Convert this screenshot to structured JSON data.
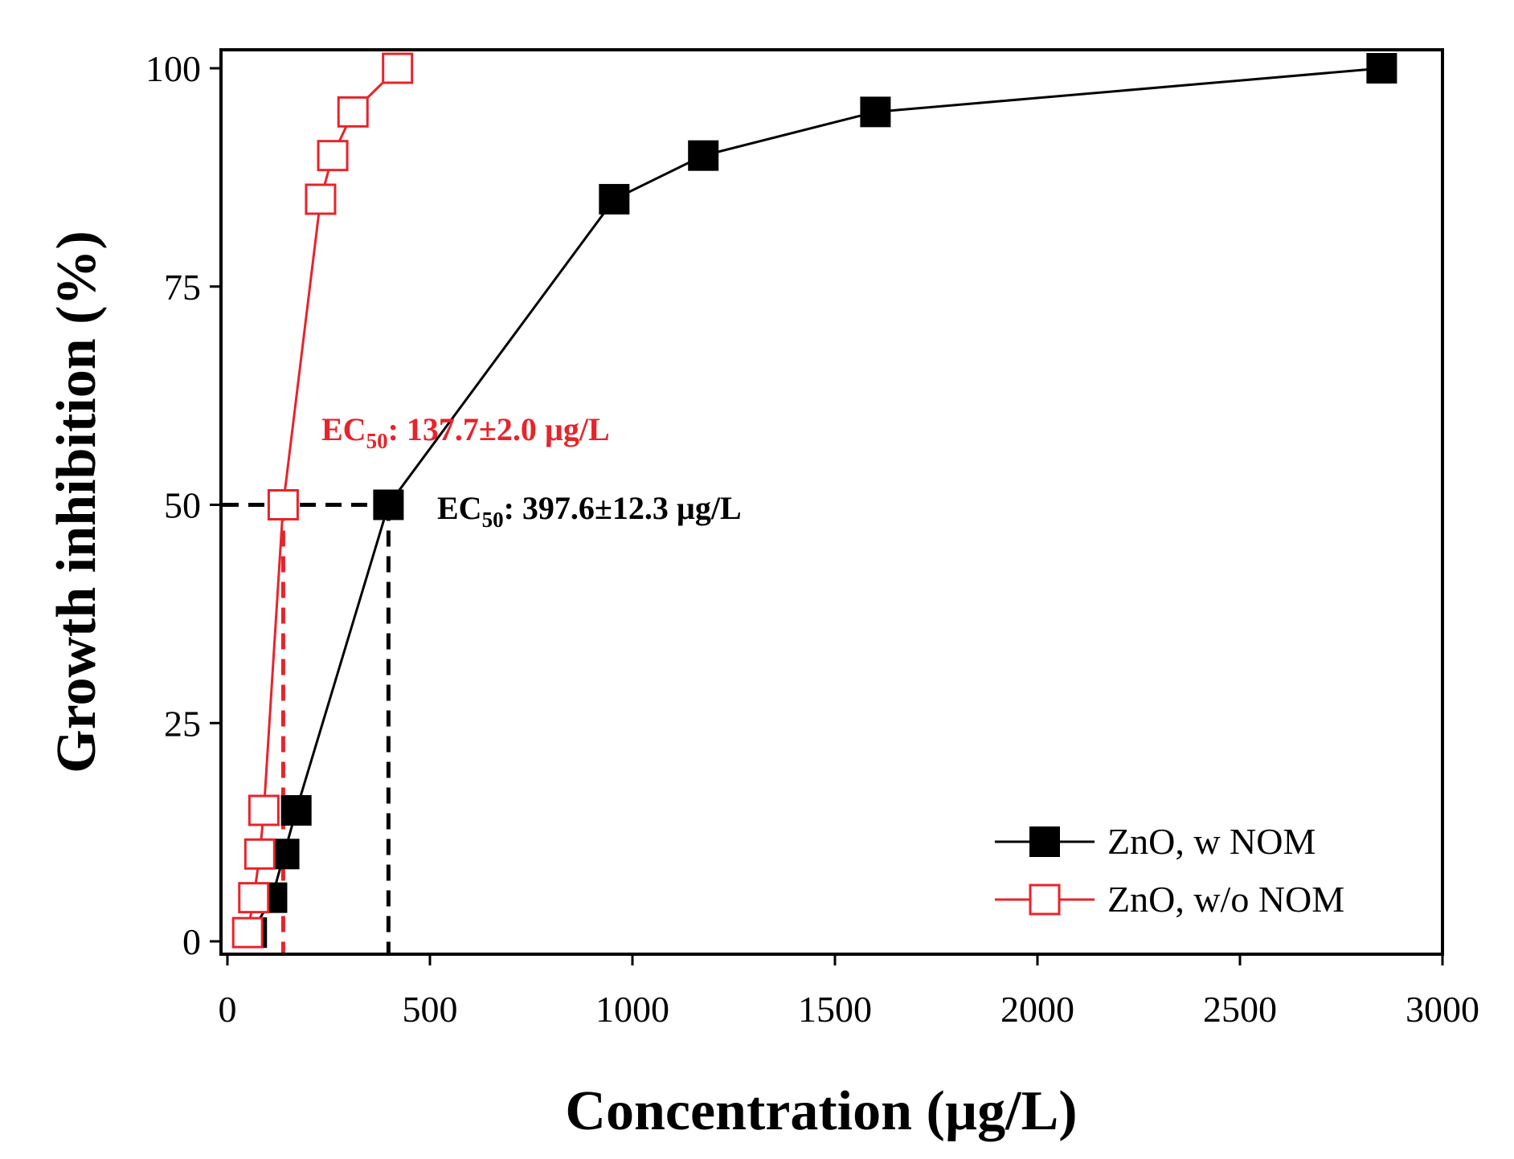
{
  "chart_data": {
    "type": "line",
    "xlabel": "Concentration (µg/L)",
    "ylabel": "Growth inhibition (%)",
    "xlim": [
      0,
      3000
    ],
    "ylim": [
      -2,
      102
    ],
    "xticks": [
      0,
      500,
      1000,
      1500,
      2000,
      2500,
      3000
    ],
    "yticks": [
      0,
      25,
      50,
      75,
      100
    ],
    "xtick_labels": [
      "0",
      "500",
      "1000",
      "1500",
      "2000",
      "2500",
      "3000"
    ],
    "ytick_labels": [
      "0",
      "25",
      "50",
      "75",
      "100"
    ],
    "grid": false,
    "legend_position": "bottom-right",
    "series": [
      {
        "name": "ZnO, w NOM",
        "color": "#000000",
        "marker": "filled-square",
        "x": [
          60,
          110,
          140,
          170,
          397.6,
          955,
          1175,
          1600,
          2850
        ],
        "y": [
          1,
          5,
          10,
          15,
          50,
          85,
          90,
          95,
          100
        ]
      },
      {
        "name": "ZnO, w/o NOM",
        "color": "#e8232a",
        "marker": "open-square",
        "x": [
          50,
          65,
          80,
          90,
          137.7,
          230,
          260,
          310,
          420
        ],
        "y": [
          1,
          5,
          10,
          15,
          50,
          85,
          90,
          95,
          100
        ]
      }
    ],
    "annotations": [
      {
        "series": "ZnO, w/o NOM",
        "prefix": "EC",
        "subscript": "50",
        "suffix": ": 137.7±2.0 µg/L",
        "ec50": 137.7,
        "level": 50,
        "color": "#e8232a"
      },
      {
        "series": "ZnO, w NOM",
        "prefix": "EC",
        "subscript": "50",
        "suffix": ": 397.6±12.3 µg/L",
        "ec50": 397.6,
        "level": 50,
        "color": "#000000"
      }
    ]
  }
}
